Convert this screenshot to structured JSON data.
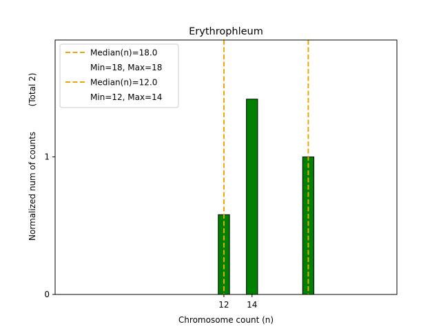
{
  "chart_data": {
    "type": "bar",
    "title": "Erythrophleum",
    "xlabel": "Chromosome count (n)",
    "ylabel": "Normalized num of counts",
    "ylabel_note": "(Total 2)",
    "xlim": [
      0,
      24.3
    ],
    "ylim": [
      0,
      1.85
    ],
    "x_ticks": [
      {
        "value": 12,
        "label": "12"
      },
      {
        "value": 14,
        "label": "14"
      }
    ],
    "y_ticks": [
      {
        "value": 0,
        "label": "0"
      },
      {
        "value": 1,
        "label": "1"
      }
    ],
    "bars": [
      {
        "x": 12,
        "value": 0.58
      },
      {
        "x": 14,
        "value": 1.42
      },
      {
        "x": 18,
        "value": 1.0
      }
    ],
    "bar_width": 0.8,
    "bar_color": "#008000",
    "baseline": {
      "x_start": 0,
      "x_end": 22.2
    },
    "median_lines": [
      {
        "x": 12,
        "color": "#e8a800"
      },
      {
        "x": 18,
        "color": "#e8a800"
      }
    ],
    "legend": {
      "position": "top-left",
      "entries": [
        {
          "type": "line",
          "label": "Median(n)=18.0",
          "color": "#e8a800"
        },
        {
          "type": "text",
          "label": "Min=18, Max=18"
        },
        {
          "type": "line",
          "label": "Median(n)=12.0",
          "color": "#e8a800"
        },
        {
          "type": "text",
          "label": "Min=12, Max=14"
        }
      ]
    },
    "grid": false
  }
}
